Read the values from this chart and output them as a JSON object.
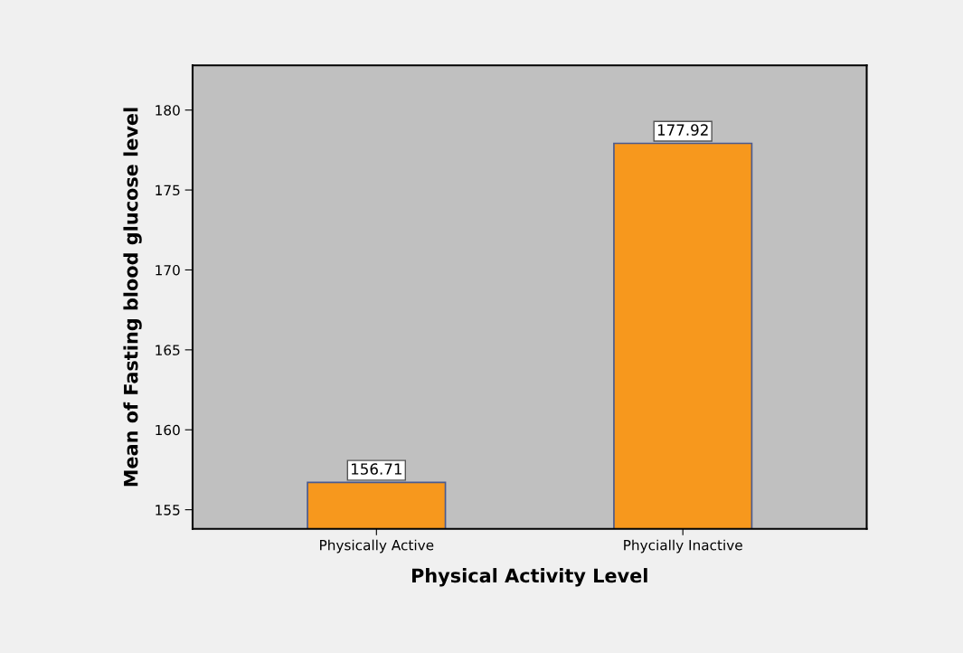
{
  "chart_data": {
    "type": "bar",
    "xlabel": "Physical Activity Level",
    "ylabel": "Mean of Fasting blood glucose level",
    "categories": [
      "Physically Active",
      "Phycially Inactive"
    ],
    "values": [
      156.71,
      177.92
    ],
    "color": "#f7981d",
    "ylim": [
      153.8,
      182.8
    ],
    "yticks": [
      155,
      160,
      165,
      170,
      175,
      180
    ],
    "data_labels": true,
    "grid": false
  }
}
